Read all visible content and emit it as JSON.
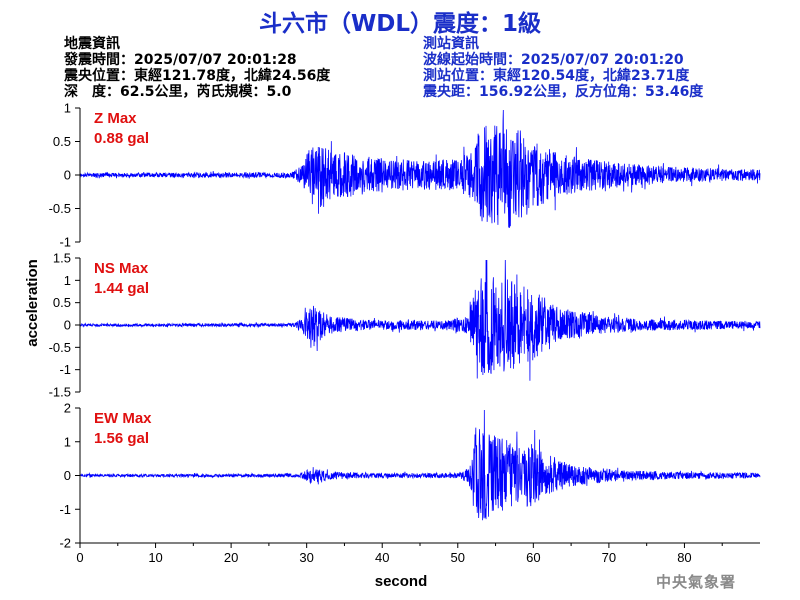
{
  "title": "斗六市（WDL）震度：1級",
  "quake_info": {
    "heading": "地震資訊",
    "origin_time": "發震時間：2025/07/07 20:01:28",
    "epicenter": "震央位置：東經121.78度，北緯24.56度",
    "depth_magnitude": "深　度：62.5公里，芮氏規模：5.0"
  },
  "station_info": {
    "heading": "測站資訊",
    "start_time": "波線起始時間：2025/07/07 20:01:20",
    "location": "測站位置：東經120.54度，北緯23.71度",
    "distance_azimuth": "震央距：156.92公里，反方位角：53.46度"
  },
  "agency": "中央氣象署",
  "colors": {
    "title": "#1a2ec8",
    "trace": "#0000ff",
    "max_label": "#e01010",
    "agency": "#8a8a8a"
  },
  "chart_data": {
    "type": "line",
    "xlabel": "second",
    "ylabel": "acceleration",
    "xlim": [
      0,
      90
    ],
    "x_ticks": [
      0,
      10,
      20,
      30,
      40,
      50,
      60,
      70,
      80
    ],
    "panels": [
      {
        "name": "Z",
        "max_label": "Z Max",
        "max_value": "0.88 gal",
        "ylim": [
          -1,
          1
        ],
        "y_ticks": [
          1,
          0.5,
          0,
          -0.5,
          -1
        ],
        "y_tick_labels": [
          "1",
          "0.5",
          "0",
          "-0.5",
          "-1"
        ],
        "envelope": [
          [
            0,
            0.03
          ],
          [
            28,
            0.04
          ],
          [
            29.5,
            0.15
          ],
          [
            30.5,
            0.45
          ],
          [
            33,
            0.38
          ],
          [
            38,
            0.28
          ],
          [
            45,
            0.22
          ],
          [
            50,
            0.24
          ],
          [
            51.5,
            0.35
          ],
          [
            53,
            0.7
          ],
          [
            56,
            0.85
          ],
          [
            58,
            0.75
          ],
          [
            60,
            0.5
          ],
          [
            64,
            0.3
          ],
          [
            70,
            0.2
          ],
          [
            78,
            0.12
          ],
          [
            90,
            0.08
          ]
        ]
      },
      {
        "name": "NS",
        "max_label": "NS Max",
        "max_value": "1.44 gal",
        "ylim": [
          -1.5,
          1.5
        ],
        "y_ticks": [
          1.5,
          1,
          0.5,
          0,
          -0.5,
          -1,
          -1.5
        ],
        "y_tick_labels": [
          "1.5",
          "1",
          "0.5",
          "0",
          "-0.5",
          "-1",
          "-1.5"
        ],
        "envelope": [
          [
            0,
            0.03
          ],
          [
            28.5,
            0.04
          ],
          [
            30,
            0.3
          ],
          [
            31,
            0.45
          ],
          [
            33,
            0.2
          ],
          [
            38,
            0.12
          ],
          [
            48,
            0.1
          ],
          [
            51.5,
            0.2
          ],
          [
            52.5,
            1.2
          ],
          [
            55,
            1.1
          ],
          [
            58,
            0.95
          ],
          [
            60,
            0.8
          ],
          [
            63,
            0.45
          ],
          [
            68,
            0.22
          ],
          [
            75,
            0.13
          ],
          [
            90,
            0.08
          ]
        ]
      },
      {
        "name": "EW",
        "max_label": "EW Max",
        "max_value": "1.56 gal",
        "ylim": [
          -2,
          2
        ],
        "y_ticks": [
          2,
          1,
          0,
          -1,
          -2
        ],
        "y_tick_labels": [
          "2",
          "1",
          "0",
          "-1",
          "-2"
        ],
        "envelope": [
          [
            0,
            0.04
          ],
          [
            29,
            0.05
          ],
          [
            30.5,
            0.22
          ],
          [
            33,
            0.12
          ],
          [
            40,
            0.07
          ],
          [
            50,
            0.08
          ],
          [
            51.5,
            0.25
          ],
          [
            52.5,
            1.5
          ],
          [
            55,
            1.2
          ],
          [
            58,
            0.9
          ],
          [
            60,
            0.95
          ],
          [
            62,
            0.55
          ],
          [
            66,
            0.28
          ],
          [
            72,
            0.15
          ],
          [
            80,
            0.1
          ],
          [
            90,
            0.08
          ]
        ]
      }
    ]
  }
}
